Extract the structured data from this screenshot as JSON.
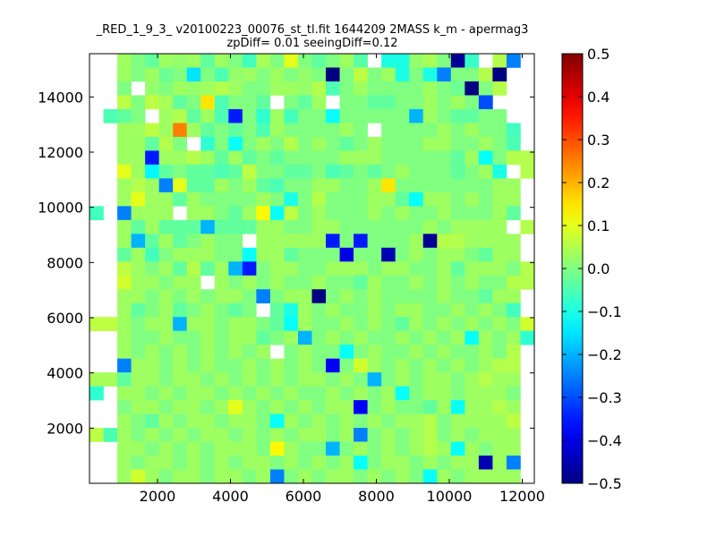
{
  "chart_data": {
    "type": "heatmap",
    "title_line1": "_RED_1_9_3_ v20100223_00076_st_tl.fit 1644209 2MASS k_m - apermag3",
    "title_line2": "zpDiff= 0.01 seeingDiff=0.12",
    "xlabel": "",
    "ylabel": "",
    "xlim": [
      135,
      12331
    ],
    "ylim": [
      0,
      15568
    ],
    "x_ticks": [
      2000,
      4000,
      6000,
      8000,
      10000,
      12000
    ],
    "x_tick_labels": [
      "2000",
      "4000",
      "6000",
      "8000",
      "10000",
      "12000"
    ],
    "y_ticks": [
      2000,
      4000,
      6000,
      8000,
      10000,
      12000,
      14000
    ],
    "y_tick_labels": [
      "2000",
      "4000",
      "6000",
      "8000",
      "10000",
      "12000",
      "14000"
    ],
    "colormap": "jet",
    "clim": [
      -0.5,
      0.5
    ],
    "colorbar_ticks": [
      -0.5,
      -0.4,
      -0.3,
      -0.2,
      -0.1,
      0.0,
      0.1,
      0.2,
      0.3,
      0.4,
      0.5
    ],
    "colorbar_tick_labels": [
      "−0.5",
      "−0.4",
      "−0.3",
      "−0.2",
      "−0.1",
      "0.0",
      "0.1",
      "0.2",
      "0.3",
      "0.4",
      "0.5"
    ],
    "grid": false,
    "row_order": "top-to-bottom (highest y first)",
    "z": [
      [
        null,
        null,
        0.03,
        0,
        -0.03,
        0.03,
        0.02,
        0.03,
        -0.03,
        0.03,
        0,
        -0.06,
        0.04,
        0,
        0.1,
        0,
        -0.03,
        0,
        0.03,
        -0.04,
        null,
        -0.1,
        -0.1,
        0.02,
        0.04,
        0,
        -0.48,
        -0.07,
        null,
        0.05,
        -0.25,
        null
      ],
      [
        null,
        null,
        0.03,
        0,
        0.03,
        -0.02,
        0,
        -0.15,
        0,
        -0.05,
        0.02,
        0.03,
        0,
        0.03,
        0,
        0.02,
        0,
        -0.5,
        0,
        0.06,
        0,
        0.03,
        -0.1,
        0,
        -0.1,
        -0.25,
        0,
        0,
        0.05,
        -0.5,
        null,
        null
      ],
      [
        null,
        null,
        0,
        null,
        0.02,
        0,
        0.03,
        0.02,
        0.03,
        0.05,
        0.03,
        0,
        0,
        0.03,
        0.03,
        0.02,
        0.05,
        -0.05,
        0,
        0.03,
        0,
        0,
        0,
        0,
        0.03,
        0,
        -0.02,
        -0.5,
        0,
        0.05,
        null,
        null
      ],
      [
        null,
        null,
        0.06,
        0,
        0.06,
        0.04,
        -0.03,
        0,
        0.15,
        -0.05,
        0,
        0,
        -0.03,
        null,
        0,
        -0.03,
        0.03,
        null,
        0,
        0,
        -0.03,
        -0.03,
        0,
        0,
        0.03,
        0,
        0.03,
        0,
        -0.3,
        null,
        null,
        null
      ],
      [
        null,
        -0.05,
        -0.03,
        0,
        null,
        0.03,
        0.05,
        -0.03,
        0.03,
        -0.05,
        -0.35,
        0,
        -0.08,
        0.03,
        -0.06,
        0,
        0,
        -0.12,
        0,
        0,
        0,
        0,
        0,
        -0.2,
        0.03,
        0,
        -0.03,
        -0.03,
        0,
        0,
        null,
        null
      ],
      [
        null,
        null,
        0.03,
        0.03,
        0.06,
        0.03,
        0.25,
        0.03,
        -0.03,
        0,
        -0.03,
        0,
        -0.05,
        0.03,
        0,
        0,
        0,
        0,
        0.03,
        0,
        null,
        0,
        0,
        0,
        0,
        0.03,
        0,
        0.03,
        0,
        0,
        -0.06,
        null
      ],
      [
        null,
        null,
        0.03,
        0.03,
        -0.03,
        0.05,
        0,
        null,
        -0.08,
        0,
        -0.12,
        0,
        0.03,
        0,
        0.05,
        0,
        0.03,
        0,
        -0.03,
        0,
        0.03,
        0,
        0,
        0,
        0.03,
        0.03,
        0,
        0,
        0.03,
        0,
        -0.05,
        null
      ],
      [
        null,
        null,
        0.03,
        0.03,
        -0.35,
        0.03,
        0.03,
        0.05,
        0.03,
        -0.03,
        0.03,
        -0.03,
        0,
        -0.03,
        0,
        0,
        0,
        0,
        0.03,
        0.03,
        0.03,
        0,
        0,
        0,
        0,
        0,
        -0.03,
        0.03,
        -0.12,
        0,
        0.05,
        0.05
      ],
      [
        null,
        null,
        0.1,
        0.03,
        -0.13,
        -0.03,
        0,
        -0.03,
        -0.03,
        -0.05,
        -0.03,
        0.06,
        0,
        0,
        -0.03,
        -0.03,
        0,
        -0.05,
        -0.03,
        0,
        -0.03,
        0,
        0.03,
        0,
        0,
        0,
        -0.03,
        0,
        0.03,
        -0.1,
        null,
        0.05
      ],
      [
        null,
        null,
        0.03,
        0.05,
        0.03,
        -0.25,
        0.1,
        -0.03,
        -0.03,
        0.03,
        0,
        0.03,
        -0.03,
        -0.05,
        0,
        0,
        0.03,
        0.03,
        0,
        0,
        0.03,
        0.15,
        0,
        0,
        0,
        0,
        0,
        0,
        0,
        0.03,
        0.03,
        null
      ],
      [
        null,
        null,
        0.03,
        0.1,
        0.03,
        0.03,
        -0.03,
        0.03,
        0,
        0,
        0,
        0,
        0.03,
        0,
        -0.1,
        0,
        0.05,
        0,
        0,
        0,
        0.03,
        0.03,
        -0.03,
        -0.12,
        0.03,
        0.03,
        0,
        0.03,
        0,
        0.03,
        0.03,
        null
      ],
      [
        -0.06,
        null,
        -0.25,
        0.03,
        0.03,
        0.03,
        null,
        0.03,
        0.03,
        0,
        -0.03,
        0.03,
        0.13,
        -0.12,
        0.06,
        0,
        0.03,
        0,
        0,
        0,
        0.03,
        0,
        0.03,
        0,
        0,
        0.03,
        0,
        0,
        0,
        0.03,
        -0.03,
        null
      ],
      [
        null,
        null,
        0.03,
        -0.03,
        0.03,
        -0.03,
        -0.03,
        -0.03,
        -0.2,
        -0.03,
        -0.03,
        -0.03,
        0.03,
        0.03,
        0,
        0,
        0.03,
        0.03,
        0,
        0,
        0,
        0,
        0,
        0,
        0.03,
        0,
        0.03,
        0.03,
        0.03,
        0.03,
        null,
        0.05
      ],
      [
        null,
        null,
        0.03,
        -0.2,
        -0.03,
        0.03,
        -0.03,
        0,
        0.03,
        0,
        0,
        null,
        0.03,
        0.03,
        0.03,
        0.03,
        0.03,
        -0.35,
        0,
        -0.35,
        0,
        0,
        0,
        0.03,
        -0.48,
        0.05,
        0.05,
        0.03,
        0.03,
        0.03,
        0.03,
        null
      ],
      [
        null,
        null,
        -0.03,
        0.03,
        -0.06,
        0,
        0.03,
        0.03,
        0.03,
        0,
        0,
        -0.12,
        0.03,
        0.03,
        -0.03,
        0,
        0,
        0,
        -0.4,
        0,
        0,
        -0.45,
        0,
        0.03,
        0,
        0.03,
        0.03,
        0,
        -0.03,
        0.03,
        0.03,
        null
      ],
      [
        null,
        null,
        0.06,
        0.03,
        0,
        0.03,
        -0.03,
        0.05,
        -0.03,
        0.03,
        -0.2,
        -0.35,
        0,
        0.03,
        0.03,
        0,
        0,
        0.03,
        0.03,
        0.03,
        0,
        0.03,
        0.03,
        0,
        0,
        0.03,
        -0.03,
        0.03,
        0.03,
        0.03,
        0,
        0.05
      ],
      [
        null,
        null,
        0.08,
        0.03,
        0.03,
        0,
        0.03,
        0.03,
        null,
        0.03,
        0,
        0.03,
        0,
        0.03,
        0,
        0,
        0.03,
        0,
        0,
        -0.03,
        0.03,
        0,
        0,
        0.03,
        0,
        0.03,
        0,
        0.03,
        0,
        0,
        0.05,
        0.05
      ],
      [
        null,
        null,
        0.03,
        0.03,
        0,
        0.03,
        0,
        0.03,
        0,
        0.03,
        0.03,
        0,
        -0.25,
        0,
        0.03,
        0.03,
        -0.5,
        0,
        0.03,
        0,
        0.03,
        0,
        0,
        0,
        0,
        0.03,
        0,
        0,
        -0.03,
        0.03,
        0.03,
        null
      ],
      [
        null,
        null,
        0.03,
        -0.03,
        0,
        0.03,
        -0.03,
        0,
        0.03,
        0,
        -0.03,
        0,
        null,
        -0.03,
        -0.1,
        0.03,
        0,
        0.03,
        0,
        0,
        0.03,
        0,
        0.03,
        0.03,
        0,
        0,
        0.03,
        0,
        0.03,
        0,
        -0.06,
        null
      ],
      [
        0.06,
        0.06,
        0.03,
        0,
        0.03,
        0.03,
        -0.2,
        0.03,
        0.03,
        0,
        0.03,
        0.03,
        0,
        -0.03,
        -0.12,
        0.03,
        0,
        0,
        0.03,
        0,
        0.03,
        0,
        -0.03,
        0.03,
        0,
        0.03,
        0,
        0.03,
        0,
        0.03,
        0,
        0.08
      ],
      [
        null,
        null,
        0.03,
        0,
        0,
        0.03,
        0,
        0,
        0.03,
        0,
        0.03,
        0.03,
        -0.03,
        0,
        0.03,
        -0.2,
        0,
        0.03,
        0,
        0.03,
        0,
        0,
        0.03,
        0,
        0.03,
        0,
        0.03,
        -0.12,
        0.03,
        0,
        0.03,
        -0.08
      ],
      [
        null,
        null,
        0.03,
        0,
        0.03,
        0,
        0.03,
        0,
        0.03,
        0,
        0.03,
        0,
        0.03,
        null,
        0,
        0.03,
        0,
        0,
        -0.12,
        0,
        0.03,
        0,
        0,
        0.03,
        0,
        0.03,
        0,
        0,
        0.03,
        0,
        0.05,
        null
      ],
      [
        null,
        null,
        -0.25,
        0.03,
        0.03,
        0,
        0.03,
        0,
        0.03,
        0,
        0,
        0.03,
        0,
        0.03,
        0,
        0.03,
        0,
        -0.38,
        0,
        0.08,
        0.03,
        0,
        0.03,
        0,
        0.03,
        0,
        0.03,
        0,
        0.03,
        0.05,
        0.05,
        null
      ],
      [
        0.04,
        0.04,
        -0.03,
        0.03,
        0.03,
        0,
        0.03,
        0.03,
        0,
        0.03,
        0,
        0.03,
        0,
        0.03,
        0,
        0.03,
        0.03,
        0,
        0.03,
        0,
        -0.2,
        0,
        0.03,
        0,
        0.03,
        0.03,
        0,
        0.03,
        0.05,
        0.03,
        0.03,
        null
      ],
      [
        -0.08,
        null,
        0.03,
        0.03,
        0,
        0.03,
        0,
        0.03,
        0.03,
        0,
        0.03,
        0,
        0.03,
        0,
        0.03,
        0,
        0,
        0.03,
        0,
        0.03,
        0,
        0.03,
        -0.12,
        0,
        0.03,
        0.03,
        0,
        0.03,
        0.03,
        0.03,
        0,
        null
      ],
      [
        null,
        null,
        0,
        0.03,
        0.03,
        0,
        0.03,
        0.03,
        0,
        0.03,
        0.1,
        0.03,
        0,
        0.03,
        0,
        0.03,
        0,
        0.03,
        0.03,
        -0.38,
        0,
        0.03,
        0,
        0,
        -0.03,
        0.03,
        -0.12,
        0.03,
        0.03,
        0.05,
        0.03,
        null
      ],
      [
        null,
        null,
        0.03,
        0,
        -0.03,
        0.03,
        0,
        0.03,
        0.03,
        0,
        0.03,
        0.03,
        0,
        -0.12,
        0.03,
        0,
        0.03,
        0,
        0.03,
        0,
        0.03,
        0,
        0.03,
        0.03,
        0.05,
        0,
        0.03,
        0.03,
        0.03,
        0.03,
        0.06,
        null
      ],
      [
        0.06,
        -0.05,
        0.03,
        0,
        0.03,
        0,
        0.03,
        0,
        0.03,
        0.03,
        0,
        0.03,
        0,
        0.03,
        0,
        0.03,
        0.03,
        0,
        0.03,
        -0.25,
        0,
        0.03,
        0,
        0.03,
        0.05,
        0,
        0.03,
        0,
        0.03,
        0.03,
        0.03,
        null
      ],
      [
        null,
        null,
        0.03,
        0.03,
        0,
        0.03,
        0,
        0.03,
        0,
        0.03,
        0.03,
        0.03,
        0,
        0.13,
        0.03,
        0,
        0,
        -0.2,
        0,
        0.03,
        0,
        0.03,
        0,
        0.03,
        0.05,
        0.03,
        -0.12,
        0.03,
        0,
        0.03,
        0.03,
        null
      ],
      [
        null,
        null,
        0.03,
        0,
        0.03,
        0.03,
        0,
        0.03,
        0,
        0.03,
        0,
        0.03,
        0.03,
        0,
        0.03,
        0,
        0.03,
        0,
        0.03,
        -0.12,
        0,
        0.03,
        0.03,
        0,
        0.03,
        0,
        0.03,
        0.03,
        -0.45,
        0.03,
        -0.25,
        null
      ],
      [
        null,
        null,
        0.03,
        0.08,
        0.03,
        0,
        0.03,
        0.03,
        0,
        0.03,
        0.03,
        0,
        0.03,
        -0.25,
        0,
        0.03,
        0,
        0.03,
        0.03,
        0,
        0.03,
        0,
        0.03,
        0,
        -0.12,
        0.03,
        0,
        0.03,
        0.03,
        0.03,
        0.03,
        null
      ]
    ]
  }
}
